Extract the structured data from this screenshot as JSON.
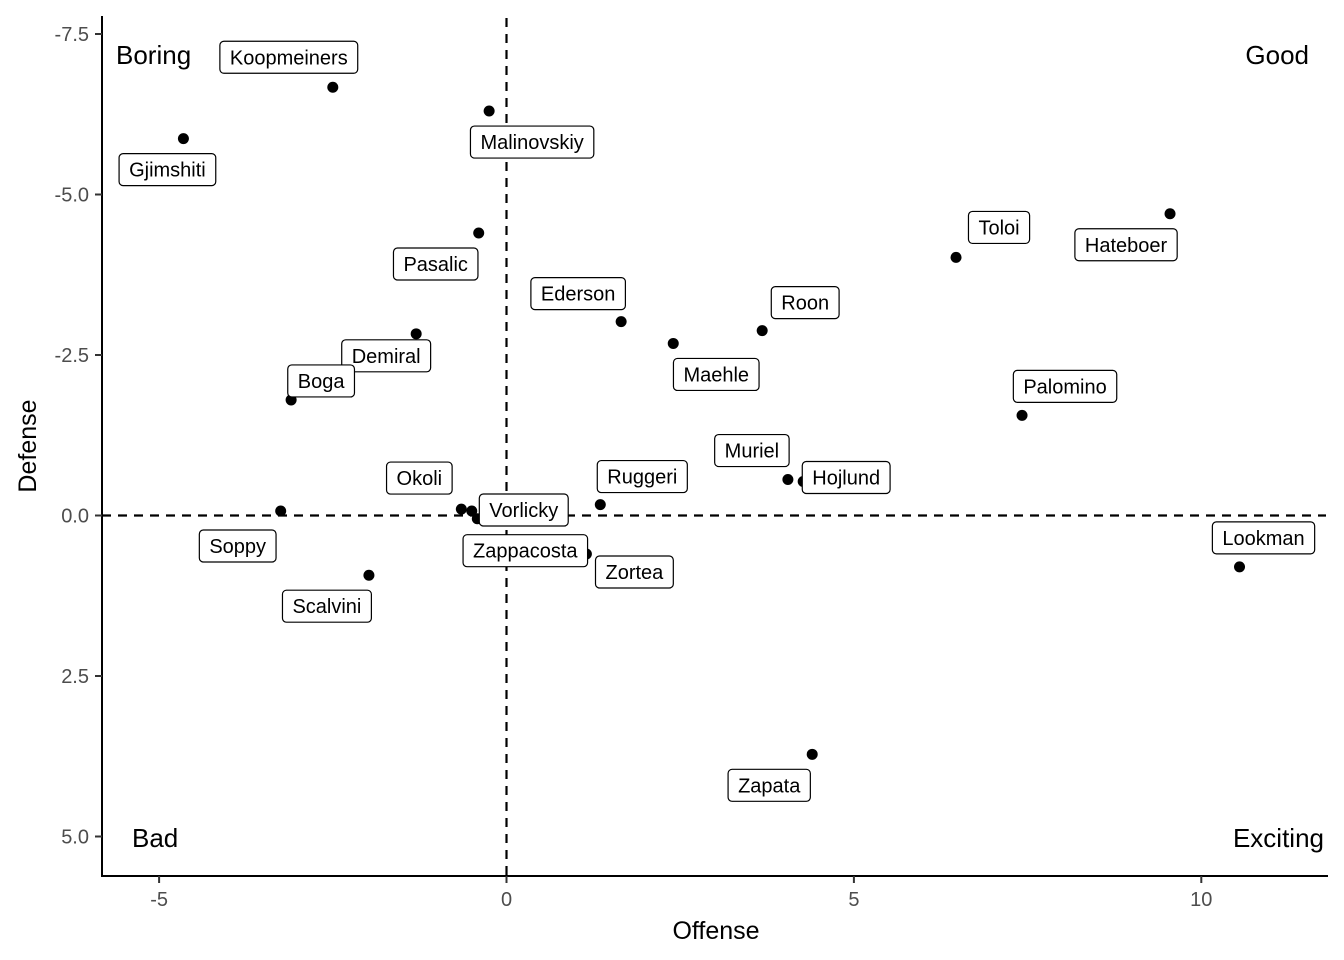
{
  "chart_data": {
    "type": "scatter",
    "xlabel": "Offense",
    "ylabel": "Defense",
    "xlim": [
      -5.8,
      11.8
    ],
    "ylim": [
      -7.7,
      5.6
    ],
    "y_axis_reversed": true,
    "x_ticks": [
      -5,
      0,
      5,
      10
    ],
    "x_tick_labels": [
      "-5",
      "0",
      "5",
      "10"
    ],
    "y_ticks": [
      -7.5,
      -5.0,
      -2.5,
      0.0,
      2.5,
      5.0
    ],
    "y_tick_labels": [
      "-7.5",
      "-5.0",
      "-2.5",
      "0.0",
      "2.5",
      "5.0"
    ],
    "reference_lines": {
      "x": 0,
      "y": 0,
      "style": "dashed"
    },
    "grid": false,
    "quadrant_labels": {
      "top_left": "Boring",
      "top_right": "Good",
      "bottom_left": "Bad",
      "bottom_right": "Exciting"
    },
    "points": [
      {
        "name": "Koopmeiners",
        "x": -2.5,
        "y": -6.67
      },
      {
        "name": "Gjimshiti",
        "x": -4.65,
        "y": -5.87
      },
      {
        "name": "Malinovskiy",
        "x": -0.25,
        "y": -6.3
      },
      {
        "name": "Pasalic",
        "x": -0.4,
        "y": -4.4
      },
      {
        "name": "Demiral",
        "x": -1.3,
        "y": -2.83
      },
      {
        "name": "Boga",
        "x": -3.1,
        "y": -1.8
      },
      {
        "name": "Soppy",
        "x": -3.25,
        "y": -0.07
      },
      {
        "name": "Scalvini",
        "x": -1.98,
        "y": 0.93
      },
      {
        "name": "Okoli",
        "x": -0.65,
        "y": -0.1
      },
      {
        "name": "Vorlicky",
        "x": -0.5,
        "y": -0.07
      },
      {
        "name": "Zappacosta",
        "x": -0.42,
        "y": 0.05
      },
      {
        "name": "Ruggeri",
        "x": 1.35,
        "y": -0.17
      },
      {
        "name": "Zortea",
        "x": 1.15,
        "y": 0.6
      },
      {
        "name": "Ederson",
        "x": 1.65,
        "y": -3.02
      },
      {
        "name": "Maehle",
        "x": 2.4,
        "y": -2.68
      },
      {
        "name": "Roon",
        "x": 3.68,
        "y": -2.88
      },
      {
        "name": "Muriel",
        "x": 4.05,
        "y": -0.56
      },
      {
        "name": "Hojlund",
        "x": 4.27,
        "y": -0.53
      },
      {
        "name": "Zapata",
        "x": 4.4,
        "y": 3.72
      },
      {
        "name": "Toloi",
        "x": 6.47,
        "y": -4.02
      },
      {
        "name": "Hateboer",
        "x": 9.55,
        "y": -4.7
      },
      {
        "name": "Palomino",
        "x": 7.42,
        "y": -1.56
      },
      {
        "name": "Lookman",
        "x": 10.55,
        "y": 0.8
      }
    ]
  }
}
